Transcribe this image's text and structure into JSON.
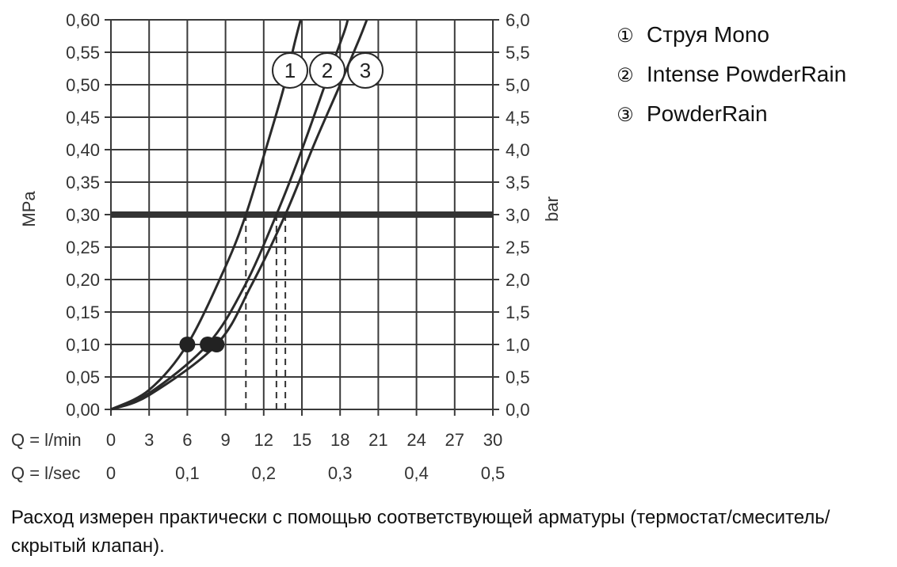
{
  "chart_data": {
    "type": "line",
    "y_left_label": "MPa",
    "y_right_label": "bar",
    "x_label_lmin": "Q = l/min",
    "x_label_lsec": "Q = l/sec",
    "x_ticks_lmin": [
      "0",
      "3",
      "6",
      "9",
      "12",
      "15",
      "18",
      "21",
      "24",
      "27",
      "30"
    ],
    "x_ticks_lsec": [
      "0",
      "0,1",
      "0,2",
      "0,3",
      "0,4",
      "0,5"
    ],
    "y_ticks_mpa": [
      "0,00",
      "0,05",
      "0,10",
      "0,15",
      "0,20",
      "0,25",
      "0,30",
      "0,35",
      "0,40",
      "0,45",
      "0,50",
      "0,55",
      "0,60"
    ],
    "y_ticks_bar": [
      "0,0",
      "0,5",
      "1,0",
      "1,5",
      "2,0",
      "2,5",
      "3,0",
      "3,5",
      "4,0",
      "4,5",
      "5,0",
      "5,5",
      "6,0"
    ],
    "xlim": [
      0,
      30
    ],
    "ylim": [
      0,
      0.6
    ],
    "reference_line_mpa": 0.3,
    "series": [
      {
        "marker": "1",
        "name": "Струя Mono",
        "points": [
          [
            0,
            0
          ],
          [
            3,
            0.03
          ],
          [
            6,
            0.1
          ],
          [
            9,
            0.22
          ],
          [
            10.6,
            0.3
          ],
          [
            12,
            0.39
          ],
          [
            13.5,
            0.49
          ],
          [
            14.5,
            0.57
          ],
          [
            14.9,
            0.6
          ]
        ],
        "flow_at_03": 10.6,
        "dot": [
          6,
          0.1
        ]
      },
      {
        "marker": "2",
        "name": "Intense PowderRain",
        "points": [
          [
            0,
            0
          ],
          [
            3,
            0.025
          ],
          [
            7.6,
            0.1
          ],
          [
            10.5,
            0.19
          ],
          [
            13,
            0.3
          ],
          [
            15,
            0.4
          ],
          [
            17,
            0.51
          ],
          [
            18.3,
            0.58
          ],
          [
            18.6,
            0.6
          ]
        ],
        "flow_at_03": 13,
        "dot": [
          7.6,
          0.1
        ]
      },
      {
        "marker": "3",
        "name": "PowderRain",
        "points": [
          [
            0,
            0
          ],
          [
            3,
            0.022
          ],
          [
            8.3,
            0.1
          ],
          [
            11,
            0.19
          ],
          [
            13.7,
            0.3
          ],
          [
            16,
            0.41
          ],
          [
            18,
            0.5
          ],
          [
            19.5,
            0.57
          ],
          [
            20.1,
            0.6
          ]
        ],
        "flow_at_03": 13.7,
        "dot": [
          8.3,
          0.1
        ]
      }
    ]
  },
  "legend": {
    "items": [
      {
        "marker": "①",
        "label": "Струя Mono"
      },
      {
        "marker": "②",
        "label": "Intense PowderRain"
      },
      {
        "marker": "③",
        "label": "PowderRain"
      }
    ]
  },
  "note": "Расход измерен практически с помощью соответствующей арматуры (термостат/смеситель/скрытый клапан)."
}
